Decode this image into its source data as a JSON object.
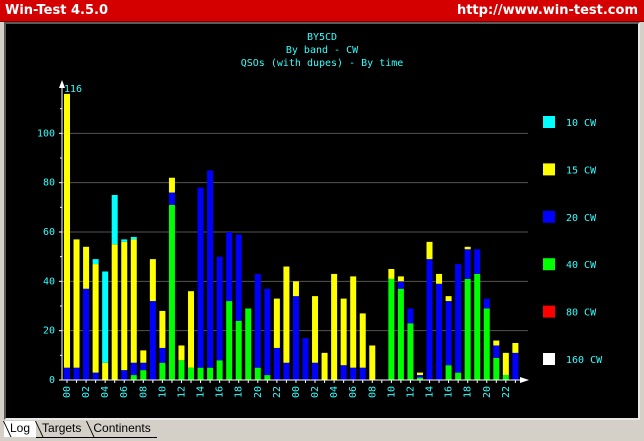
{
  "window": {
    "title": "Win-Test 4.5.0",
    "url": "http://www.win-test.com"
  },
  "chart_data": {
    "type": "bar",
    "stacked": true,
    "title": "BY5CD",
    "subtitle": "By band - CW",
    "subtitle2": "QSOs (with dupes) - By time",
    "max_label": "116",
    "ylim": [
      0,
      120
    ],
    "yticks": [
      0,
      20,
      40,
      60,
      80,
      100
    ],
    "grid": true,
    "legend_position": "right",
    "categories": [
      "00",
      "01",
      "02",
      "03",
      "04",
      "05",
      "06",
      "07",
      "08",
      "09",
      "10",
      "11",
      "12",
      "13",
      "14",
      "15",
      "16",
      "17",
      "18",
      "19",
      "20",
      "21",
      "22",
      "23",
      "00",
      "01",
      "02",
      "03",
      "04",
      "05",
      "06",
      "07",
      "08",
      "09",
      "10",
      "11",
      "12",
      "13",
      "14",
      "15",
      "16",
      "17",
      "18",
      "19",
      "20",
      "21",
      "22",
      "23"
    ],
    "tick_labels": [
      "00",
      "02",
      "04",
      "06",
      "08",
      "10",
      "12",
      "14",
      "16",
      "18",
      "20",
      "22",
      "00",
      "02",
      "04",
      "06",
      "08",
      "10",
      "12",
      "14",
      "16",
      "18",
      "20",
      "22"
    ],
    "series": [
      {
        "name": "160 CW",
        "color": "#ffffff",
        "values": [
          0,
          0,
          0,
          0,
          0,
          0,
          0,
          0,
          0,
          0,
          0,
          0,
          0,
          0,
          0,
          0,
          0,
          0,
          0,
          0,
          0,
          0,
          0,
          0,
          0,
          0,
          0,
          0,
          0,
          0,
          0,
          0,
          0,
          0,
          0,
          0,
          0,
          0,
          0,
          0,
          0,
          0,
          0,
          0,
          0,
          0,
          0,
          0
        ]
      },
      {
        "name": "80 CW",
        "color": "#ff0000",
        "values": [
          0,
          0,
          0,
          0,
          0,
          0,
          0,
          0,
          0,
          0,
          0,
          0,
          0,
          0,
          0,
          0,
          0,
          0,
          0,
          0,
          0,
          0,
          0,
          0,
          0,
          0,
          0,
          0,
          0,
          0,
          0,
          0,
          0,
          0,
          0,
          0,
          0,
          0,
          0,
          0,
          0,
          0,
          0,
          0,
          0,
          0,
          0,
          0
        ]
      },
      {
        "name": "40 CW",
        "color": "#00ff00",
        "values": [
          0,
          0,
          0,
          0,
          0,
          0,
          0,
          2,
          4,
          0,
          7,
          71,
          8,
          5,
          5,
          5,
          8,
          32,
          24,
          29,
          5,
          2,
          0,
          0,
          0,
          0,
          0,
          0,
          0,
          0,
          0,
          0,
          0,
          0,
          41,
          37,
          23,
          1,
          0,
          0,
          6,
          3,
          41,
          43,
          29,
          9,
          2,
          0
        ]
      },
      {
        "name": "20 CW",
        "color": "#0000ff",
        "values": [
          5,
          5,
          37,
          3,
          0,
          0,
          4,
          5,
          3,
          32,
          6,
          5,
          0,
          0,
          73,
          80,
          42,
          28,
          35,
          0,
          38,
          35,
          13,
          7,
          34,
          17,
          7,
          0,
          0,
          6,
          5,
          5,
          0,
          0,
          0,
          3,
          6,
          1,
          49,
          39,
          26,
          44,
          12,
          10,
          4,
          5,
          0,
          11
        ]
      },
      {
        "name": "15 CW",
        "color": "#ffff00",
        "values": [
          111,
          52,
          17,
          44,
          7,
          55,
          52,
          50,
          5,
          17,
          15,
          6,
          6,
          31,
          0,
          0,
          0,
          0,
          0,
          0,
          0,
          0,
          20,
          39,
          6,
          0,
          27,
          11,
          43,
          27,
          37,
          22,
          14,
          0,
          4,
          2,
          0,
          1,
          7,
          4,
          2,
          0,
          1,
          0,
          0,
          2,
          9,
          4
        ]
      },
      {
        "name": "10 CW",
        "color": "#00ffff",
        "values": [
          0,
          0,
          0,
          2,
          37,
          20,
          1,
          1,
          0,
          0,
          0,
          0,
          0,
          0,
          0,
          0,
          0,
          0,
          0,
          0,
          0,
          0,
          0,
          0,
          0,
          0,
          0,
          0,
          0,
          0,
          0,
          0,
          0,
          0,
          0,
          0,
          0,
          0,
          0,
          0,
          0,
          0,
          0,
          0,
          0,
          0,
          0,
          0
        ]
      }
    ]
  },
  "tabs": [
    {
      "label": "Log",
      "active": true
    },
    {
      "label": "Targets",
      "active": false
    },
    {
      "label": "Continents",
      "active": false
    }
  ]
}
